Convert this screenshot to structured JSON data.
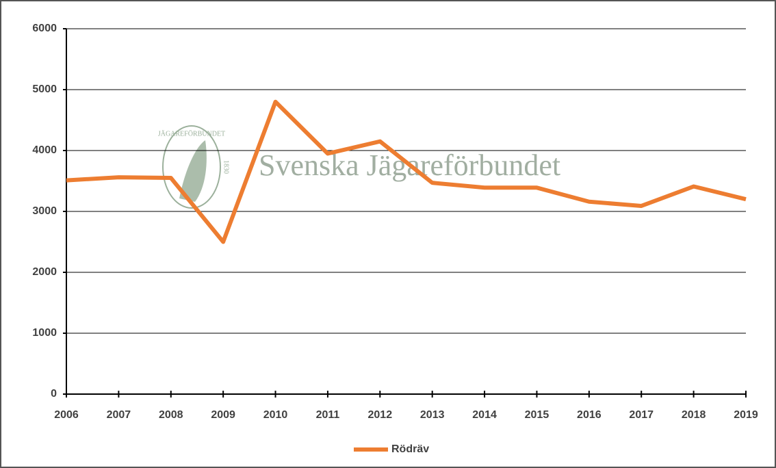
{
  "chart_data": {
    "type": "line",
    "watermark": "Svenska Jägareförbundet",
    "logo_text": "JÄGAREFÖRBUNDET",
    "logo_year": "1830",
    "categories": [
      "2006",
      "2007",
      "2008",
      "2009",
      "2010",
      "2011",
      "2012",
      "2013",
      "2014",
      "2015",
      "2016",
      "2017",
      "2018",
      "2019"
    ],
    "series": [
      {
        "name": "Rödräv",
        "color": "#ed7d31",
        "values": [
          3510,
          3560,
          3550,
          2500,
          4800,
          3950,
          4150,
          3470,
          3390,
          3390,
          3160,
          3090,
          3410,
          3200
        ]
      }
    ],
    "ylim": [
      0,
      6000
    ],
    "yticks": [
      0,
      1000,
      2000,
      3000,
      4000,
      5000,
      6000
    ],
    "grid": true,
    "legend": "bottom"
  }
}
